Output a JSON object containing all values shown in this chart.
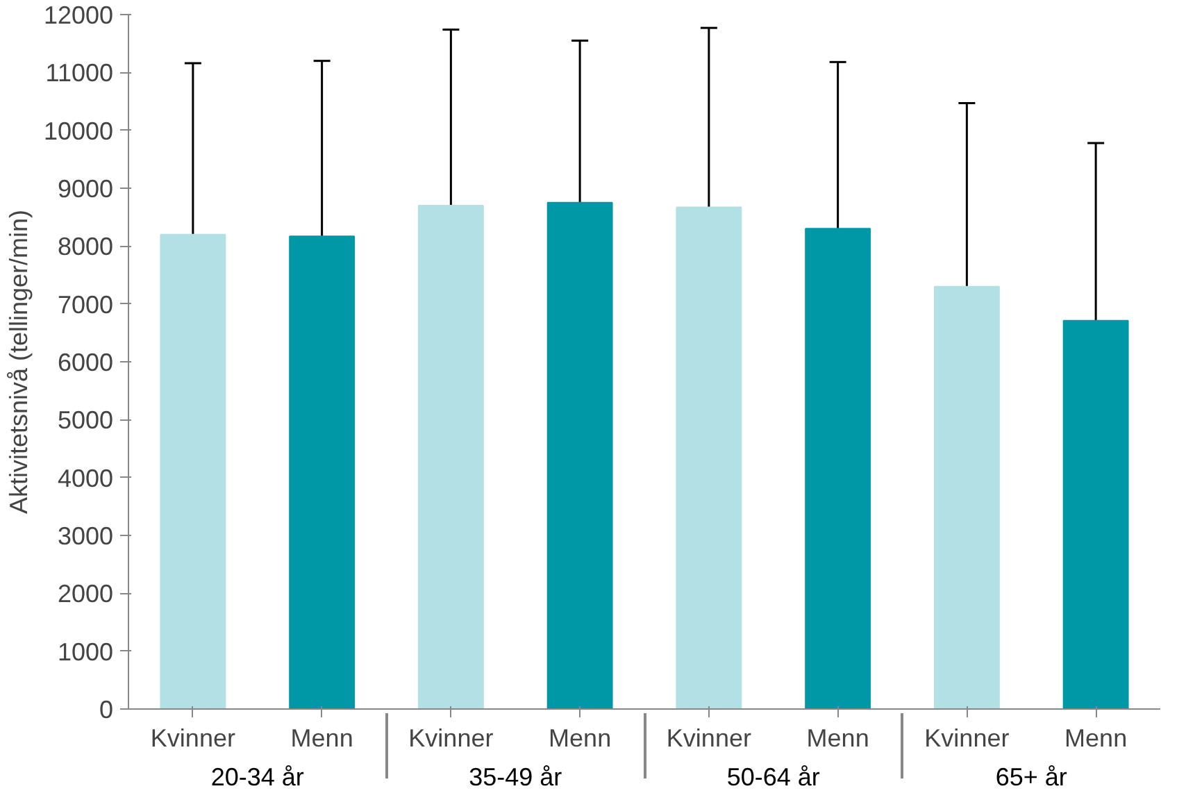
{
  "chart_data": {
    "type": "bar",
    "ylabel": "Aktivitetsnivå (tellinger/min)",
    "categories": [
      "20-34 år",
      "35-49 år",
      "50-64 år",
      "65+ år"
    ],
    "series": [
      {
        "name": "Kvinner",
        "color": "#b3e0e5",
        "values": [
          8200,
          8700,
          8670,
          7300
        ],
        "errors": [
          [
            8200,
            11160
          ],
          [
            8700,
            11740
          ],
          [
            8670,
            11770
          ],
          [
            7300,
            10470
          ]
        ]
      },
      {
        "name": "Menn",
        "color": "#0097a7",
        "values": [
          8170,
          8750,
          8300,
          6710
        ],
        "errors": [
          [
            8170,
            11200
          ],
          [
            8750,
            11550
          ],
          [
            8300,
            11180
          ],
          [
            6710,
            9780
          ]
        ]
      }
    ],
    "ylim": [
      0,
      12000
    ],
    "yticks": [
      0,
      1000,
      2000,
      3000,
      4000,
      5000,
      6000,
      7000,
      8000,
      9000,
      10000,
      11000,
      12000
    ],
    "grid": false
  }
}
